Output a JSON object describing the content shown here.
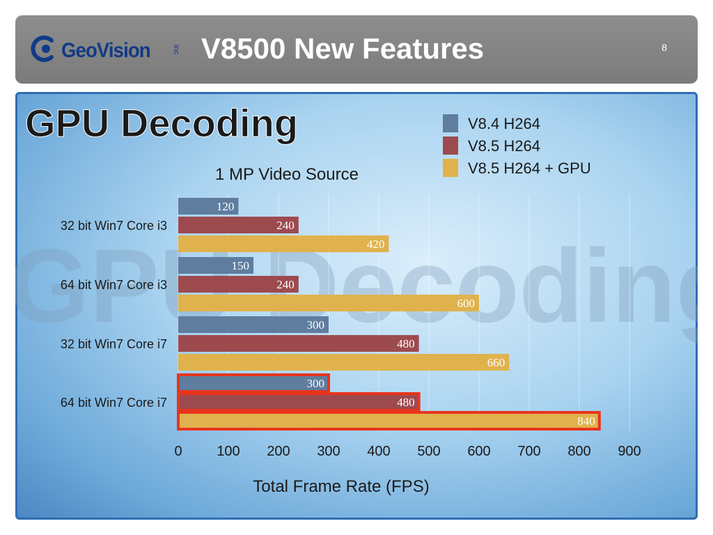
{
  "header": {
    "logo_text": "GeoVision",
    "logo_suffix": "inc",
    "title": "V8500 New Features",
    "page_number": "8"
  },
  "colors": {
    "header_bg": "#838383",
    "series_v84": "#5f7d9e",
    "series_v85": "#9d4a4f",
    "series_v85_gpu": "#e0b24d",
    "highlight": "#e8341c",
    "panel_border": "#2f6db1"
  },
  "chart_data": {
    "type": "bar",
    "orientation": "horizontal",
    "title": "GPU Decoding",
    "subtitle": "1 MP Video Source",
    "watermark": "GPU Decoding",
    "xlabel": "Total Frame Rate (FPS)",
    "ylabel": "",
    "xlim": [
      0,
      900
    ],
    "x_ticks": [
      "0",
      "100",
      "200",
      "300",
      "400",
      "500",
      "600",
      "700",
      "800",
      "900"
    ],
    "grid": "vertical",
    "legend_position": "top-right",
    "categories": [
      "32 bit Win7 Core i3",
      "64 bit Win7 Core i3",
      "32 bit Win7 Core i7",
      "64 bit Win7 Core i7"
    ],
    "series": [
      {
        "name": "V8.4 H264",
        "values": [
          120,
          150,
          300,
          300
        ]
      },
      {
        "name": "V8.5 H264",
        "values": [
          240,
          240,
          480,
          480
        ]
      },
      {
        "name": "V8.5 H264 + GPU",
        "values": [
          420,
          600,
          660,
          840
        ]
      }
    ],
    "highlighted_category": "64 bit Win7 Core i7"
  }
}
